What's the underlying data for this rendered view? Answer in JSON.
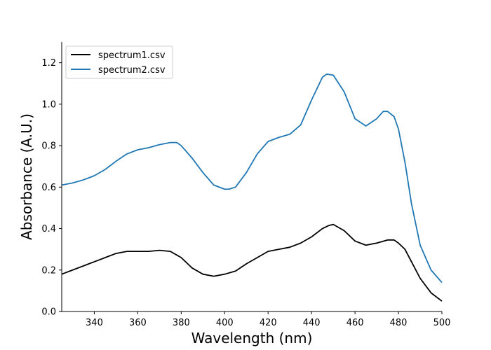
{
  "chart_data": {
    "type": "line",
    "title": "",
    "xlabel": "Wavelength (nm)",
    "ylabel": "Absorbance (A.U.)",
    "xlim": [
      325,
      500
    ],
    "ylim": [
      0.0,
      1.3
    ],
    "x_ticks": [
      340,
      360,
      380,
      400,
      420,
      440,
      460,
      480,
      500
    ],
    "y_ticks": [
      0.0,
      0.2,
      0.4,
      0.6,
      0.8,
      1.0,
      1.2
    ],
    "x_tick_labels": [
      "340",
      "360",
      "380",
      "400",
      "420",
      "440",
      "460",
      "480",
      "500"
    ],
    "y_tick_labels": [
      "0.0",
      "0.2",
      "0.4",
      "0.6",
      "0.8",
      "1.0",
      "1.2"
    ],
    "grid": false,
    "legend_position": "top-left",
    "series": [
      {
        "name": "spectrum1.csv",
        "color": "#000000",
        "x": [
          325,
          330,
          335,
          340,
          345,
          350,
          355,
          360,
          365,
          370,
          375,
          380,
          385,
          390,
          395,
          400,
          405,
          410,
          415,
          420,
          425,
          430,
          435,
          440,
          445,
          448,
          450,
          455,
          460,
          465,
          470,
          475,
          478,
          480,
          483,
          486,
          490,
          495,
          500
        ],
        "y": [
          0.18,
          0.2,
          0.22,
          0.24,
          0.26,
          0.28,
          0.29,
          0.29,
          0.29,
          0.295,
          0.29,
          0.26,
          0.21,
          0.18,
          0.17,
          0.18,
          0.195,
          0.23,
          0.26,
          0.29,
          0.3,
          0.31,
          0.33,
          0.36,
          0.4,
          0.415,
          0.42,
          0.39,
          0.34,
          0.32,
          0.33,
          0.345,
          0.345,
          0.33,
          0.3,
          0.24,
          0.16,
          0.09,
          0.05
        ]
      },
      {
        "name": "spectrum2.csv",
        "color": "#1f77b4",
        "x": [
          325,
          330,
          335,
          340,
          345,
          350,
          355,
          360,
          365,
          370,
          375,
          378,
          380,
          385,
          390,
          395,
          400,
          402,
          405,
          410,
          415,
          420,
          425,
          430,
          435,
          440,
          445,
          447,
          450,
          455,
          460,
          465,
          470,
          473,
          475,
          478,
          480,
          483,
          486,
          490,
          495,
          500
        ],
        "y": [
          0.61,
          0.62,
          0.635,
          0.655,
          0.685,
          0.725,
          0.76,
          0.78,
          0.79,
          0.805,
          0.815,
          0.815,
          0.8,
          0.74,
          0.67,
          0.61,
          0.59,
          0.59,
          0.6,
          0.67,
          0.76,
          0.82,
          0.84,
          0.855,
          0.9,
          1.02,
          1.13,
          1.145,
          1.14,
          1.06,
          0.93,
          0.895,
          0.93,
          0.965,
          0.965,
          0.94,
          0.88,
          0.72,
          0.52,
          0.32,
          0.2,
          0.14
        ]
      }
    ]
  }
}
